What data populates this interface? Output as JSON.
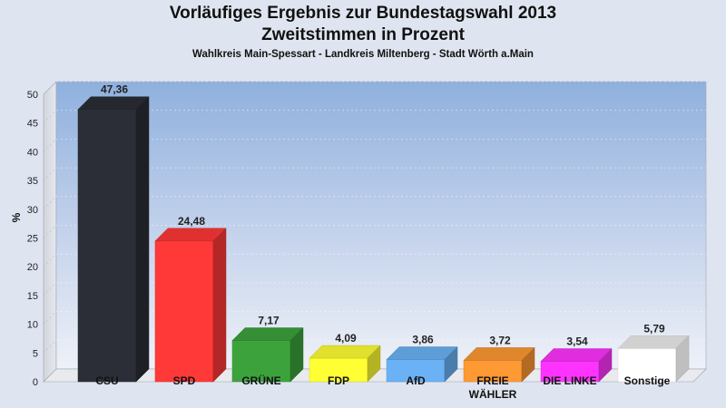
{
  "chart_data": {
    "type": "bar",
    "title": "Vorläufiges Ergebnis zur Bundestagswahl 2013",
    "subtitle": "Zweitstimmen in Prozent",
    "subtitle2": "Wahlkreis Main-Spessart - Landkreis Miltenberg - Stadt Wörth a.Main",
    "ylabel": "%",
    "ylim": [
      0,
      50
    ],
    "yticks": [
      "0",
      "5",
      "10",
      "15",
      "20",
      "25",
      "30",
      "35",
      "40",
      "45",
      "50"
    ],
    "grid": true,
    "categories": [
      {
        "label": "CSU",
        "label2": ""
      },
      {
        "label": "SPD",
        "label2": ""
      },
      {
        "label": "GRÜNE",
        "label2": ""
      },
      {
        "label": "FDP",
        "label2": ""
      },
      {
        "label": "AfD",
        "label2": ""
      },
      {
        "label": "FREIE",
        "label2": "WÄHLER"
      },
      {
        "label": "DIE LINKE",
        "label2": ""
      },
      {
        "label": "Sonstige",
        "label2": ""
      }
    ],
    "values": [
      47.36,
      24.48,
      7.17,
      4.09,
      3.86,
      3.72,
      3.54,
      5.79
    ],
    "value_labels": [
      "47,36",
      "24,48",
      "7,17",
      "4,09",
      "3,86",
      "3,72",
      "3,54",
      "5,79"
    ],
    "colors": [
      "#2b2e36",
      "#ff3838",
      "#3ca33c",
      "#ffff33",
      "#6ab2f5",
      "#ff9933",
      "#ff33ff",
      "#ffffff"
    ]
  }
}
